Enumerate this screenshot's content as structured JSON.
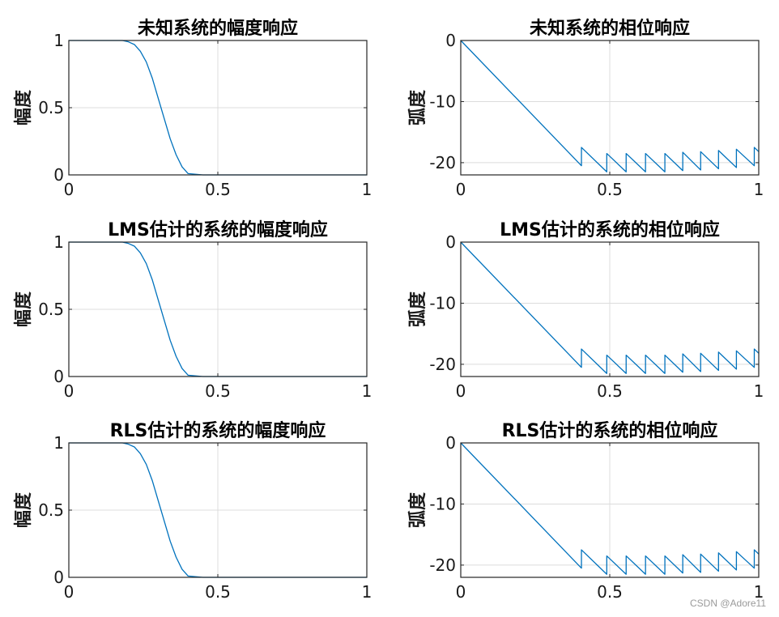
{
  "chart_data": [
    {
      "type": "line",
      "title": "未知系统的幅度响应",
      "xlabel": "",
      "ylabel": "幅度",
      "xlim": [
        0,
        1
      ],
      "ylim": [
        0,
        1
      ],
      "xticks": [
        "0",
        "0.5",
        "1"
      ],
      "yticks": [
        "0",
        "0.5",
        "1"
      ],
      "grid": true,
      "color": "#0072bd",
      "series": [
        {
          "x": [
            0,
            0.1,
            0.18,
            0.2,
            0.22,
            0.24,
            0.26,
            0.28,
            0.3,
            0.32,
            0.34,
            0.36,
            0.38,
            0.4,
            0.45,
            0.5,
            0.6,
            0.7,
            0.8,
            0.9,
            1.0
          ],
          "y": [
            1,
            1,
            1,
            0.99,
            0.97,
            0.92,
            0.84,
            0.72,
            0.57,
            0.42,
            0.27,
            0.15,
            0.06,
            0.01,
            0,
            0,
            0,
            0,
            0,
            0,
            0
          ]
        }
      ]
    },
    {
      "type": "line",
      "title": "未知系统的相位响应",
      "xlabel": "",
      "ylabel": "弧度",
      "xlim": [
        0,
        1
      ],
      "ylim": [
        -22,
        0
      ],
      "xticks": [
        "0",
        "0.5",
        "1"
      ],
      "yticks": [
        "0",
        "-10",
        "-20"
      ],
      "grid": true,
      "color": "#0072bd",
      "series": [
        {
          "x": [
            0,
            0.405,
            0.405,
            0.49,
            0.49,
            0.555,
            0.555,
            0.62,
            0.62,
            0.685,
            0.685,
            0.745,
            0.745,
            0.805,
            0.805,
            0.865,
            0.865,
            0.925,
            0.925,
            0.985,
            0.985,
            1.0
          ],
          "y": [
            0,
            -20.5,
            -17.5,
            -21.5,
            -18.5,
            -21.5,
            -18.5,
            -21.5,
            -18.5,
            -21.5,
            -18.5,
            -21.3,
            -18.3,
            -21.2,
            -18.2,
            -21.0,
            -18.0,
            -20.8,
            -17.8,
            -20.5,
            -17.5,
            -18.2
          ]
        }
      ]
    },
    {
      "type": "line",
      "title": "LMS估计的系统的幅度响应",
      "xlabel": "",
      "ylabel": "幅度",
      "xlim": [
        0,
        1
      ],
      "ylim": [
        0,
        1
      ],
      "xticks": [
        "0",
        "0.5",
        "1"
      ],
      "yticks": [
        "0",
        "0.5",
        "1"
      ],
      "grid": true,
      "color": "#0072bd",
      "series": [
        {
          "x": [
            0,
            0.1,
            0.18,
            0.2,
            0.22,
            0.24,
            0.26,
            0.28,
            0.3,
            0.32,
            0.34,
            0.36,
            0.38,
            0.4,
            0.45,
            0.5,
            0.6,
            0.7,
            0.8,
            0.9,
            1.0
          ],
          "y": [
            1,
            1,
            1,
            0.99,
            0.97,
            0.92,
            0.84,
            0.72,
            0.57,
            0.42,
            0.27,
            0.15,
            0.06,
            0.01,
            0,
            0,
            0,
            0,
            0,
            0,
            0
          ]
        }
      ]
    },
    {
      "type": "line",
      "title": "LMS估计的系统的相位响应",
      "xlabel": "",
      "ylabel": "弧度",
      "xlim": [
        0,
        1
      ],
      "ylim": [
        -22,
        0
      ],
      "xticks": [
        "0",
        "0.5",
        "1"
      ],
      "yticks": [
        "0",
        "-10",
        "-20"
      ],
      "grid": true,
      "color": "#0072bd",
      "series": [
        {
          "x": [
            0,
            0.405,
            0.405,
            0.49,
            0.49,
            0.555,
            0.555,
            0.62,
            0.62,
            0.685,
            0.685,
            0.745,
            0.745,
            0.805,
            0.805,
            0.865,
            0.865,
            0.925,
            0.925,
            0.985,
            0.985,
            1.0
          ],
          "y": [
            0,
            -20.5,
            -17.5,
            -21.5,
            -18.5,
            -21.5,
            -18.5,
            -21.5,
            -18.5,
            -21.5,
            -18.5,
            -21.3,
            -18.3,
            -21.2,
            -18.2,
            -21.0,
            -18.0,
            -20.8,
            -17.8,
            -20.5,
            -17.5,
            -18.2
          ]
        }
      ]
    },
    {
      "type": "line",
      "title": "RLS估计的系统的幅度响应",
      "xlabel": "",
      "ylabel": "幅度",
      "xlim": [
        0,
        1
      ],
      "ylim": [
        0,
        1
      ],
      "xticks": [
        "0",
        "0.5",
        "1"
      ],
      "yticks": [
        "0",
        "0.5",
        "1"
      ],
      "grid": true,
      "color": "#0072bd",
      "series": [
        {
          "x": [
            0,
            0.1,
            0.18,
            0.2,
            0.22,
            0.24,
            0.26,
            0.28,
            0.3,
            0.32,
            0.34,
            0.36,
            0.38,
            0.4,
            0.45,
            0.5,
            0.6,
            0.7,
            0.8,
            0.9,
            1.0
          ],
          "y": [
            1,
            1,
            1,
            0.99,
            0.97,
            0.92,
            0.84,
            0.72,
            0.57,
            0.42,
            0.27,
            0.15,
            0.06,
            0.01,
            0,
            0,
            0,
            0,
            0,
            0,
            0
          ]
        }
      ]
    },
    {
      "type": "line",
      "title": "RLS估计的系统的相位响应",
      "xlabel": "",
      "ylabel": "弧度",
      "xlim": [
        0,
        1
      ],
      "ylim": [
        -22,
        0
      ],
      "xticks": [
        "0",
        "0.5",
        "1"
      ],
      "yticks": [
        "0",
        "-10",
        "-20"
      ],
      "grid": true,
      "color": "#0072bd",
      "series": [
        {
          "x": [
            0,
            0.405,
            0.405,
            0.49,
            0.49,
            0.555,
            0.555,
            0.62,
            0.62,
            0.685,
            0.685,
            0.745,
            0.745,
            0.805,
            0.805,
            0.865,
            0.865,
            0.925,
            0.925,
            0.985,
            0.985,
            1.0
          ],
          "y": [
            0,
            -20.5,
            -17.5,
            -21.5,
            -18.5,
            -21.5,
            -18.5,
            -21.5,
            -18.5,
            -21.5,
            -18.5,
            -21.3,
            -18.3,
            -21.2,
            -18.2,
            -21.0,
            -18.0,
            -20.8,
            -17.8,
            -20.5,
            -17.5,
            -18.2
          ]
        }
      ]
    }
  ],
  "watermark": "CSDN @Adore11"
}
